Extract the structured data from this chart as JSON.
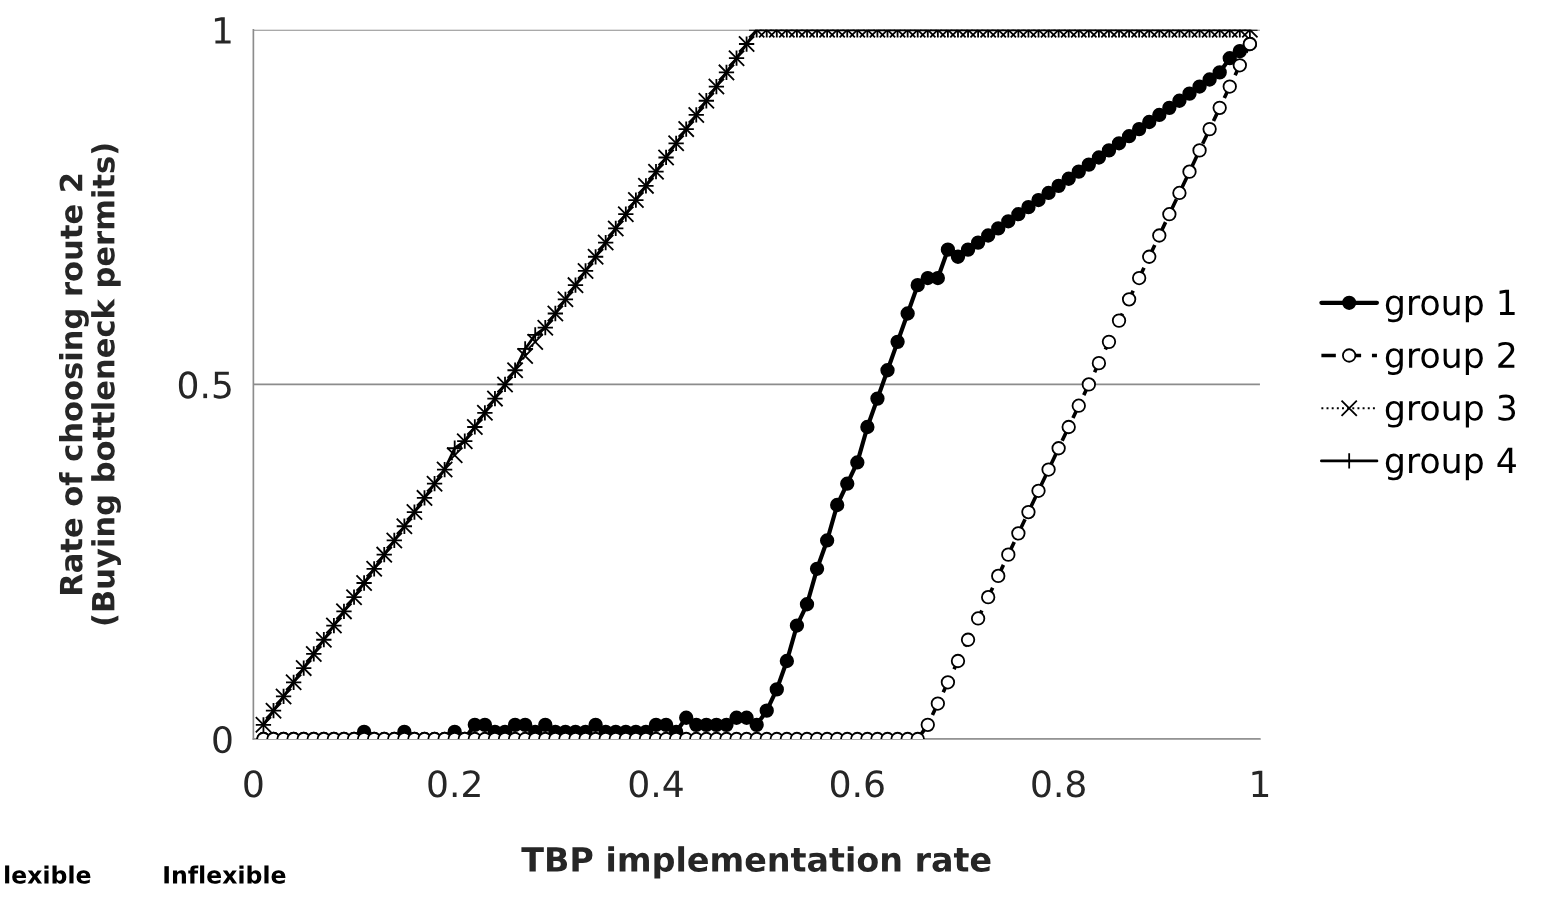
{
  "chart_data": {
    "type": "line",
    "xlabel": "TBP implementation rate",
    "ylabel": "Rate of choosing route 2\n(Buying bottleneck permits)",
    "annotations": [
      "lexible",
      "Inflexible"
    ],
    "x": [
      0.01,
      0.02,
      0.03,
      0.04,
      0.05,
      0.06,
      0.07,
      0.08,
      0.09,
      0.1,
      0.11,
      0.12,
      0.13,
      0.14,
      0.15,
      0.16,
      0.17,
      0.18,
      0.19,
      0.2,
      0.21,
      0.22,
      0.23,
      0.24,
      0.25,
      0.26,
      0.27,
      0.28,
      0.29,
      0.3,
      0.31,
      0.32,
      0.33,
      0.34,
      0.35,
      0.36,
      0.37,
      0.38,
      0.39,
      0.4,
      0.41,
      0.42,
      0.43,
      0.44,
      0.45,
      0.46,
      0.47,
      0.48,
      0.49,
      0.5,
      0.51,
      0.52,
      0.53,
      0.54,
      0.55,
      0.56,
      0.57,
      0.58,
      0.59,
      0.6,
      0.61,
      0.62,
      0.63,
      0.64,
      0.65,
      0.66,
      0.67,
      0.68,
      0.69,
      0.7,
      0.71,
      0.72,
      0.73,
      0.74,
      0.75,
      0.76,
      0.77,
      0.78,
      0.79,
      0.8,
      0.81,
      0.82,
      0.83,
      0.84,
      0.85,
      0.86,
      0.87,
      0.88,
      0.89,
      0.9,
      0.91,
      0.92,
      0.93,
      0.94,
      0.95,
      0.96,
      0.97,
      0.98,
      0.99
    ],
    "series": [
      {
        "name": "group 1",
        "color": "#000000",
        "marker": "circle",
        "line_style": "solid",
        "values": [
          0,
          0,
          0,
          0,
          0,
          0,
          0,
          0,
          0,
          0,
          0.01,
          0,
          0,
          0,
          0.01,
          0,
          0,
          0,
          0,
          0.01,
          0,
          0.02,
          0.02,
          0.01,
          0.01,
          0.02,
          0.02,
          0.01,
          0.02,
          0.01,
          0.01,
          0.01,
          0.01,
          0.02,
          0.01,
          0.01,
          0.01,
          0.01,
          0.01,
          0.02,
          0.02,
          0.01,
          0.03,
          0.02,
          0.02,
          0.02,
          0.02,
          0.03,
          0.03,
          0.02,
          0.04,
          0.07,
          0.11,
          0.16,
          0.19,
          0.24,
          0.28,
          0.33,
          0.36,
          0.39,
          0.44,
          0.48,
          0.52,
          0.56,
          0.6,
          0.64,
          0.65,
          0.65,
          0.69,
          0.68,
          0.69,
          0.7,
          0.71,
          0.72,
          0.73,
          0.74,
          0.75,
          0.76,
          0.77,
          0.78,
          0.79,
          0.8,
          0.81,
          0.82,
          0.83,
          0.84,
          0.85,
          0.86,
          0.87,
          0.88,
          0.89,
          0.9,
          0.91,
          0.92,
          0.93,
          0.94,
          0.96,
          0.97,
          0.98
        ]
      },
      {
        "name": "group 2",
        "color": "#000000",
        "marker": "circle",
        "line_style": "dashed",
        "values": [
          0,
          0,
          0,
          0,
          0,
          0,
          0,
          0,
          0,
          0,
          0,
          0,
          0,
          0,
          0,
          0,
          0,
          0,
          0,
          0,
          0,
          0,
          0,
          0,
          0,
          0,
          0,
          0,
          0,
          0,
          0,
          0,
          0,
          0,
          0,
          0,
          0,
          0,
          0,
          0,
          0,
          0,
          0,
          0,
          0,
          0,
          0,
          0,
          0,
          0,
          0,
          0,
          0,
          0,
          0,
          0,
          0,
          0,
          0,
          0,
          0,
          0,
          0,
          0,
          0,
          0,
          0.02,
          0.05,
          0.08,
          0.11,
          0.14,
          0.17,
          0.2,
          0.23,
          0.26,
          0.29,
          0.32,
          0.35,
          0.38,
          0.41,
          0.44,
          0.47,
          0.5,
          0.53,
          0.56,
          0.59,
          0.62,
          0.65,
          0.68,
          0.71,
          0.74,
          0.77,
          0.8,
          0.83,
          0.86,
          0.89,
          0.92,
          0.95,
          0.98
        ]
      },
      {
        "name": "group 3",
        "color": "#000000",
        "marker": "cross",
        "line_style": "dotted",
        "values": [
          0.02,
          0.04,
          0.06,
          0.08,
          0.1,
          0.12,
          0.14,
          0.16,
          0.18,
          0.2,
          0.22,
          0.24,
          0.26,
          0.28,
          0.3,
          0.32,
          0.34,
          0.36,
          0.38,
          0.4,
          0.42,
          0.44,
          0.46,
          0.48,
          0.5,
          0.52,
          0.54,
          0.56,
          0.58,
          0.6,
          0.62,
          0.64,
          0.66,
          0.68,
          0.7,
          0.72,
          0.74,
          0.76,
          0.78,
          0.8,
          0.82,
          0.84,
          0.86,
          0.88,
          0.9,
          0.92,
          0.94,
          0.96,
          0.98,
          1,
          1,
          1,
          1,
          1,
          1,
          1,
          1,
          1,
          1,
          1,
          1,
          1,
          1,
          1,
          1,
          1,
          1,
          1,
          1,
          1,
          1,
          1,
          1,
          1,
          1,
          1,
          1,
          1,
          1,
          1,
          1,
          1,
          1,
          1,
          1,
          1,
          1,
          1,
          1,
          1,
          1,
          1,
          1,
          1,
          1,
          1,
          1,
          1,
          1
        ]
      },
      {
        "name": "group 4",
        "color": "#000000",
        "marker": "plus",
        "line_style": "solid",
        "values": [
          0.02,
          0.04,
          0.06,
          0.08,
          0.1,
          0.12,
          0.14,
          0.16,
          0.18,
          0.2,
          0.22,
          0.24,
          0.26,
          0.28,
          0.3,
          0.32,
          0.34,
          0.36,
          0.38,
          0.41,
          0.42,
          0.44,
          0.46,
          0.48,
          0.5,
          0.52,
          0.55,
          0.57,
          0.58,
          0.6,
          0.62,
          0.64,
          0.66,
          0.68,
          0.7,
          0.72,
          0.74,
          0.76,
          0.78,
          0.8,
          0.82,
          0.84,
          0.86,
          0.88,
          0.9,
          0.92,
          0.94,
          0.96,
          0.98,
          1,
          1,
          1,
          1,
          1,
          1,
          1,
          1,
          1,
          1,
          1,
          1,
          1,
          1,
          1,
          1,
          1,
          1,
          1,
          1,
          1,
          1,
          1,
          1,
          1,
          1,
          1,
          1,
          1,
          1,
          1,
          1,
          1,
          1,
          1,
          1,
          1,
          1,
          1,
          1,
          1,
          1,
          1,
          1,
          1,
          1,
          1,
          1,
          1,
          1
        ]
      }
    ],
    "xlim": [
      0,
      1
    ],
    "xticks": [
      0,
      0.2,
      0.4,
      0.6,
      0.8,
      1
    ],
    "ylim": [
      0,
      1
    ],
    "yticks": [
      0,
      0.5,
      1
    ],
    "grid": "y",
    "legend": "right"
  }
}
